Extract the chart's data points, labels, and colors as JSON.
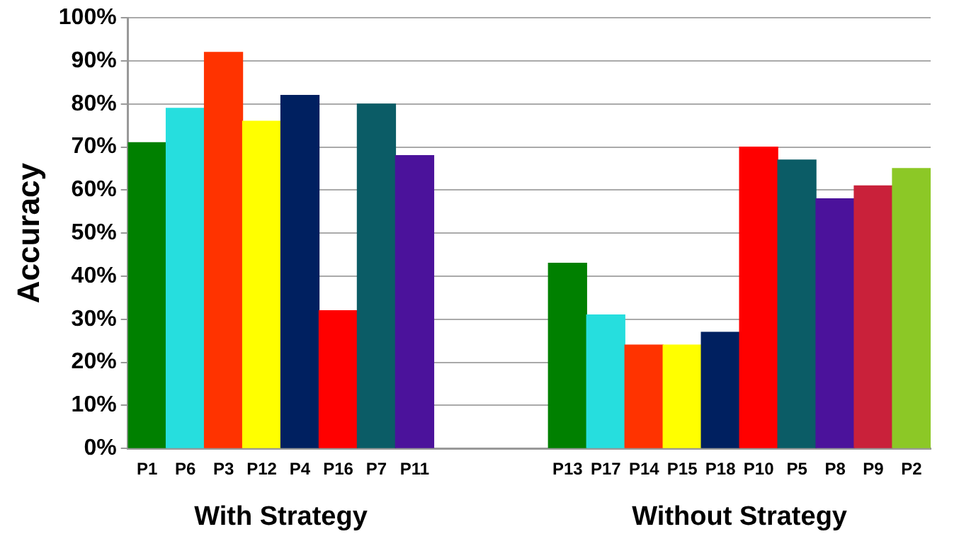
{
  "chart_data": {
    "type": "bar",
    "ylabel": "Accuracy",
    "categories": [
      "P1",
      "P6",
      "P3",
      "P12",
      "P4",
      "P16",
      "P7",
      "P11",
      null,
      null,
      null,
      "P13",
      "P17",
      "P14",
      "P15",
      "P18",
      "P10",
      "P5",
      "P8",
      "P9",
      "P2"
    ],
    "values": [
      71,
      79,
      92,
      76,
      82,
      32,
      80,
      68,
      null,
      null,
      null,
      43,
      31,
      24,
      24,
      27,
      70,
      67,
      58,
      61,
      65
    ],
    "colors": [
      "#008000",
      "#26dede",
      "#ff3300",
      "#ffff00",
      "#002060",
      "#ff0000",
      "#0b5c66",
      "#4b129b",
      "#ffffff",
      "#ffffff",
      "#ffffff",
      "#008000",
      "#26dede",
      "#ff3300",
      "#ffff00",
      "#002060",
      "#ff0000",
      "#0b5c66",
      "#4b129b",
      "#c9213a",
      "#8cc826"
    ],
    "ylim": [
      0,
      100
    ],
    "yticks": [
      {
        "value": 0,
        "label": "0%"
      },
      {
        "value": 10,
        "label": "10%"
      },
      {
        "value": 20,
        "label": "20%"
      },
      {
        "value": 30,
        "label": "30%"
      },
      {
        "value": 40,
        "label": "40%"
      },
      {
        "value": 50,
        "label": "50%"
      },
      {
        "value": 60,
        "label": "60%"
      },
      {
        "value": 70,
        "label": "70%"
      },
      {
        "value": 80,
        "label": "80%"
      },
      {
        "value": 90,
        "label": "90%"
      },
      {
        "value": 100,
        "label": "100%"
      }
    ],
    "grid": "y",
    "annotations": [
      "With Strategy",
      "Without Strategy"
    ]
  }
}
